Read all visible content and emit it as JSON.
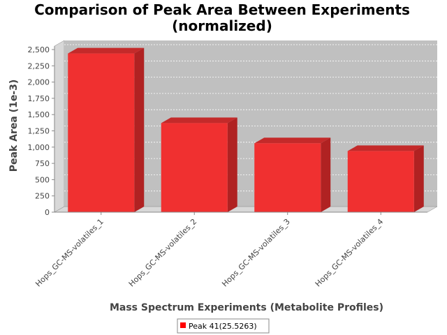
{
  "chart_data": {
    "type": "bar",
    "title_line1": "Comparison of Peak Area Between Experiments",
    "title_line2": "(normalized)",
    "xlabel": "Mass Spectrum Experiments (Metabolite Profiles)",
    "ylabel": "Peak Area (1e-3)",
    "categories": [
      "Hops_GC-MS-volatiles_1",
      "Hops_GC-MS-volatiles_2",
      "Hops_GC-MS-volatiles_3",
      "Hops_GC-MS-volatiles_4"
    ],
    "series": [
      {
        "name": "Peak 41(25.5263)",
        "values": [
          2440,
          1370,
          1060,
          940
        ],
        "color": "#f03030"
      }
    ],
    "ylim": [
      0,
      2500
    ],
    "yticks": [
      "0",
      "250",
      "500",
      "750",
      "1,000",
      "1,250",
      "1,500",
      "1,750",
      "2,000",
      "2,250",
      "2,500"
    ],
    "grid": true,
    "legend": "bottom-center",
    "plot_background": "#c0c0c0"
  }
}
